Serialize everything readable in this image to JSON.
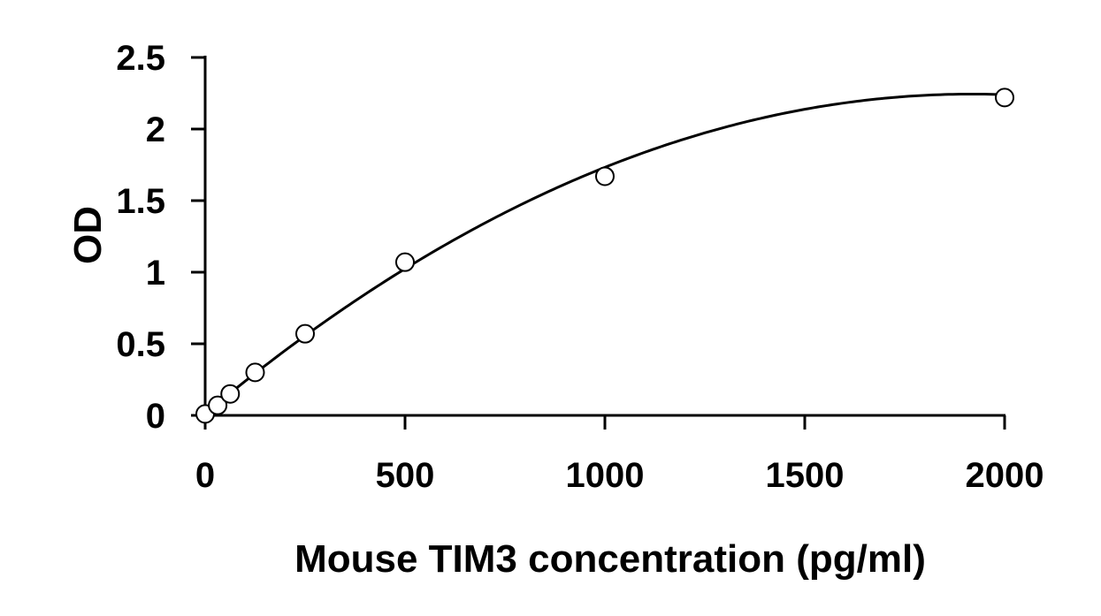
{
  "chart_data": {
    "type": "scatter",
    "title": "",
    "xlabel": "Mouse TIM3 concentration (pg/ml)",
    "ylabel": "OD",
    "xlim": [
      0,
      2000
    ],
    "ylim": [
      0,
      2.5
    ],
    "x_ticks": [
      0,
      500,
      1000,
      1500,
      2000
    ],
    "x_tick_labels": [
      "0",
      "500",
      "1000",
      "1500",
      "2000"
    ],
    "y_ticks": [
      0,
      0.5,
      1,
      1.5,
      2,
      2.5
    ],
    "y_tick_labels": [
      "0",
      "0.5",
      "1",
      "1.5",
      "2",
      "2.5"
    ],
    "grid": false,
    "legend": "none",
    "series": [
      {
        "marker": "open-circle",
        "x": [
          0,
          31.25,
          62.5,
          125,
          250,
          500,
          1000,
          2000
        ],
        "y": [
          0.01,
          0.07,
          0.15,
          0.3,
          0.57,
          1.07,
          1.67,
          2.22
        ]
      }
    ],
    "trendline": {
      "type": "polynomial-2",
      "coefficients": [
        0.012,
        0.002327,
        -6.065e-07
      ]
    },
    "colors": {
      "line": "#000000",
      "marker_fill": "#ffffff",
      "marker_stroke": "#000000"
    }
  }
}
